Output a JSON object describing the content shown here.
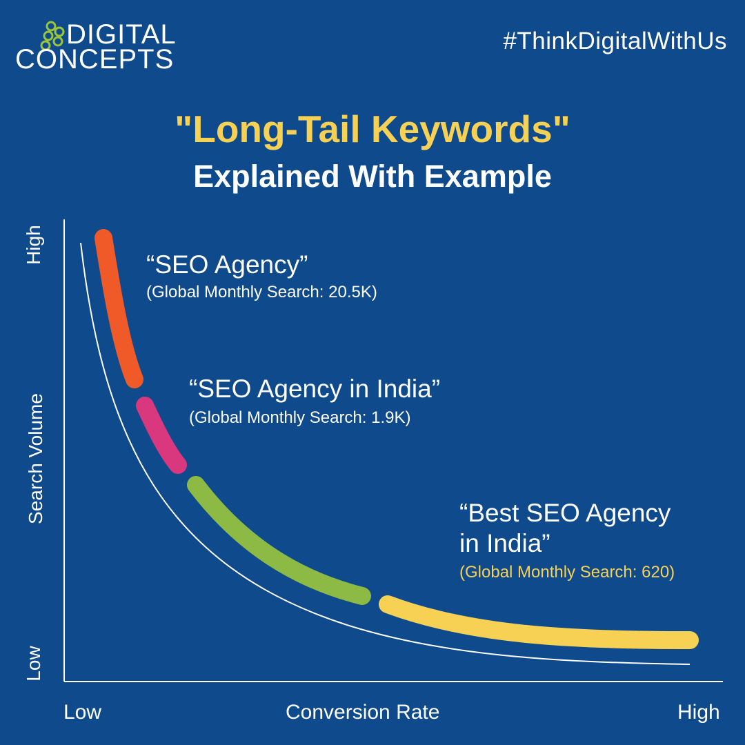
{
  "brand": {
    "line1": "DIGITAL",
    "line2": "CONCEPTS",
    "icon": "bubbles-logo-icon",
    "logo_color": "#9bc43b"
  },
  "hashtag": "#ThinkDigitalWithUs",
  "header": {
    "title": "\"Long-Tail Keywords\"",
    "subtitle": "Explained With Example"
  },
  "colors": {
    "background": "#0e4a8c",
    "accent": "#f6d154",
    "segment_head": "#f05a28",
    "segment_mid": "#d9387f",
    "segment_body": "#8cba44",
    "segment_tail": "#f6d154"
  },
  "chart_data": {
    "type": "line",
    "title": "\"Long-Tail Keywords\"",
    "subtitle": "Explained With Example",
    "xlabel": "Conversion Rate",
    "ylabel": "Search Volume",
    "x_ticks": [
      "Low",
      "High"
    ],
    "y_ticks": [
      "Low",
      "High"
    ],
    "grid": false,
    "series": [
      {
        "name": "SEO Agency",
        "label": "“SEO Agency”",
        "detail": "(Global Monthly Search: 20.5K)",
        "search_volume": 20500,
        "color": "#f05a28"
      },
      {
        "name": "SEO Agency in India",
        "label": "“SEO Agency in India”",
        "detail": "(Global Monthly Search: 1.9K)",
        "search_volume": 1900,
        "color": "#d9387f"
      },
      {
        "name": "",
        "label": "",
        "detail": "",
        "color": "#8cba44"
      },
      {
        "name": "Best SEO Agency in India",
        "label_line1": "“Best SEO Agency",
        "label_line2": "in India”",
        "detail": "(Global Monthly Search: 620)",
        "search_volume": 620,
        "color": "#f6d154"
      }
    ]
  }
}
